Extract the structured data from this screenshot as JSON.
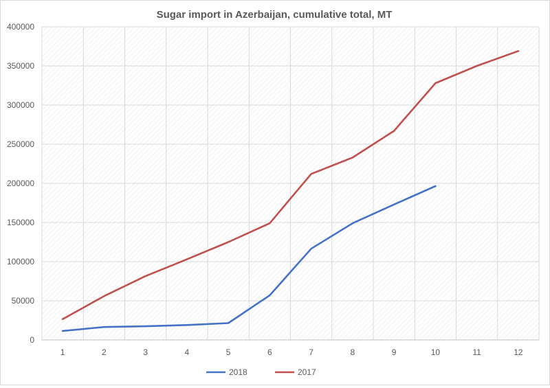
{
  "chart_data": {
    "type": "line",
    "title": "Sugar import in Azerbaijan, cumulative total, MT",
    "xlabel": "",
    "ylabel": "",
    "categories": [
      "1",
      "2",
      "3",
      "4",
      "5",
      "6",
      "7",
      "8",
      "9",
      "10",
      "11",
      "12"
    ],
    "ylim": [
      0,
      400000
    ],
    "yticks": [
      "0",
      "50000",
      "100000",
      "150000",
      "200000",
      "250000",
      "300000",
      "350000",
      "400000"
    ],
    "grid": true,
    "legend_position": "bottom",
    "series": [
      {
        "name": "2018",
        "color": "#4472c4",
        "values": [
          11500,
          16500,
          17500,
          19000,
          21500,
          57000,
          116500,
          149000,
          173000,
          196500,
          null,
          null
        ]
      },
      {
        "name": "2017",
        "color": "#c0504d",
        "values": [
          26500,
          56000,
          81500,
          103000,
          125000,
          149000,
          212000,
          233000,
          267000,
          328000,
          350000,
          369000
        ]
      }
    ]
  }
}
